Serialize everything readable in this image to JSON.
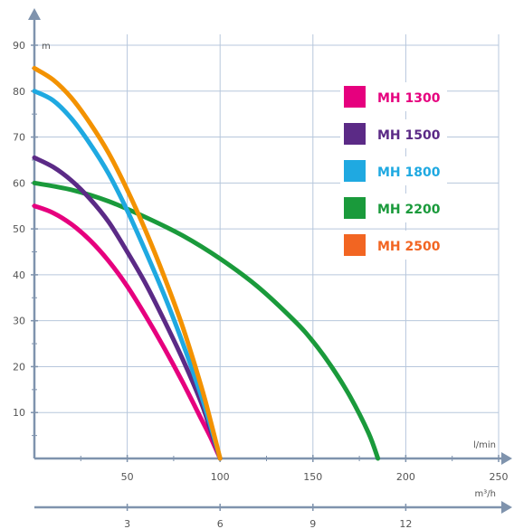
{
  "chart_data": {
    "type": "line",
    "x_unit": "l/min",
    "x2_unit": "m³/h",
    "y_unit": "m",
    "xlim": [
      0,
      250
    ],
    "ylim": [
      0,
      90
    ],
    "x_ticks": [
      50,
      100,
      150,
      200,
      250
    ],
    "x_tick_labels": [
      "50",
      "100",
      "150",
      "200",
      "250"
    ],
    "x2_ticks": [
      3,
      6,
      9,
      12
    ],
    "x2_tick_labels": [
      "3",
      "6",
      "9",
      "12"
    ],
    "y_ticks": [
      10,
      20,
      30,
      40,
      50,
      60,
      70,
      80,
      90
    ],
    "y_tick_labels": [
      "10",
      "20",
      "30",
      "40",
      "50",
      "60",
      "70",
      "80",
      "90"
    ],
    "grid": true,
    "legend_placement": "top-right",
    "series": [
      {
        "name": "MH 1300",
        "color": "#e6007e",
        "x": [
          0,
          10,
          20,
          30,
          40,
          50,
          60,
          70,
          80,
          90,
          95,
          100
        ],
        "y": [
          55,
          53.5,
          51,
          47.5,
          43,
          37.5,
          31,
          24,
          16.5,
          8.5,
          4.5,
          0
        ]
      },
      {
        "name": "MH 1500",
        "color": "#5b2a86",
        "x": [
          0,
          10,
          20,
          30,
          40,
          50,
          60,
          70,
          80,
          90,
          95,
          100
        ],
        "y": [
          65.5,
          63.5,
          60.5,
          56.5,
          51.5,
          45,
          38,
          30,
          21.5,
          12,
          6,
          0
        ]
      },
      {
        "name": "MH 1800",
        "color": "#1fa9e1",
        "x": [
          0,
          10,
          20,
          30,
          40,
          50,
          60,
          70,
          80,
          90,
          95,
          100
        ],
        "y": [
          80,
          78,
          74,
          68.5,
          62,
          54,
          45,
          35.5,
          25,
          13.5,
          7,
          0
        ]
      },
      {
        "name": "MH 2200",
        "color": "#1a9a3b",
        "x": [
          0,
          20,
          40,
          60,
          80,
          100,
          120,
          140,
          150,
          160,
          170,
          180,
          185
        ],
        "y": [
          60,
          58.5,
          56,
          52.5,
          48.5,
          43.5,
          37.5,
          30,
          25.5,
          20,
          13.5,
          5.5,
          0
        ]
      },
      {
        "name": "MH 2500",
        "color": "#f39200",
        "x": [
          0,
          10,
          20,
          30,
          40,
          50,
          60,
          70,
          80,
          90,
          95,
          100
        ],
        "y": [
          85,
          82.5,
          78.5,
          73,
          66.5,
          58.5,
          49.5,
          39.5,
          28.5,
          15.5,
          8,
          0
        ]
      }
    ],
    "legend": [
      {
        "label": "MH 1300",
        "color": "#e6007e"
      },
      {
        "label": "MH 1500",
        "color": "#5b2a86"
      },
      {
        "label": "MH 1800",
        "color": "#1fa9e1"
      },
      {
        "label": "MH 2200",
        "color": "#1a9a3b"
      },
      {
        "label": "MH 2500",
        "color": "#f26522"
      }
    ]
  }
}
